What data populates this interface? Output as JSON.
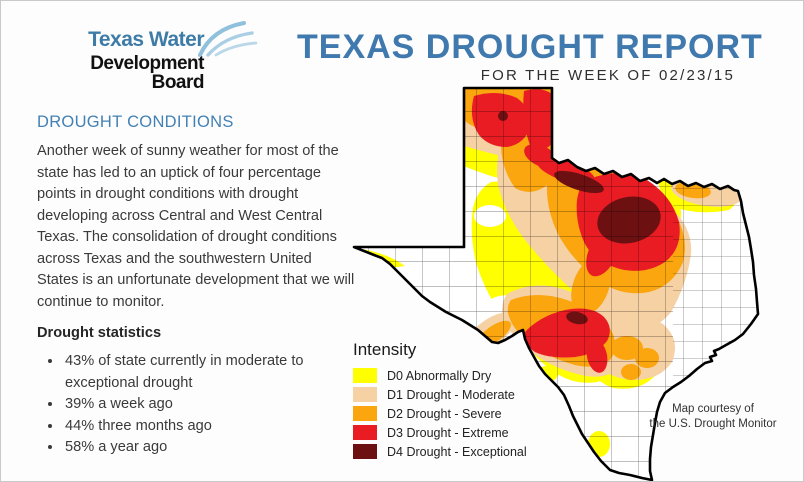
{
  "header": {
    "logo": {
      "line1": "Texas Water",
      "line2": "Development Board",
      "icon": "water-swoosh-icon",
      "blue": "#3e7ca8"
    },
    "title": "TEXAS DROUGHT REPORT",
    "subtitle": "FOR THE WEEK OF 02/23/15",
    "title_blue": "#4079ad"
  },
  "content": {
    "section_heading": "DROUGHT CONDITIONS",
    "heading_blue": "#4381b4",
    "paragraph": "Another week of sunny weather for most of the state has led to an uptick of four percentage points in drought conditions with drought developing across Central and West Central Texas. The consolidation of drought conditions across Texas and the southwestern United States is an unfortunate development that we will continue to monitor.",
    "stats_heading": "Drought statistics",
    "stats": [
      "43% of state currently in moderate to exceptional drought",
      "39% a week ago",
      "44% three months ago",
      "58% a year ago"
    ]
  },
  "map": {
    "legend_title": "Intensity",
    "legend": [
      {
        "label": "D0 Abnormally Dry",
        "color": "#ffff00"
      },
      {
        "label": "D1 Drought - Moderate",
        "color": "#f5d1a4"
      },
      {
        "label": "D2 Drought - Severe",
        "color": "#fba50f"
      },
      {
        "label": "D3 Drought - Extreme",
        "color": "#e91c24"
      },
      {
        "label": "D4 Drought - Exceptional",
        "color": "#6d1012"
      }
    ],
    "colors": {
      "d0": "#ffff00",
      "d1": "#f5d1a4",
      "d2": "#fba50f",
      "d3": "#e91c24",
      "d4": "#6d1012",
      "none": "#ffffff",
      "outline": "#000000"
    },
    "courtesy_line1": "Map courtesy of",
    "courtesy_line2": "the U.S. Drought Monitor"
  }
}
